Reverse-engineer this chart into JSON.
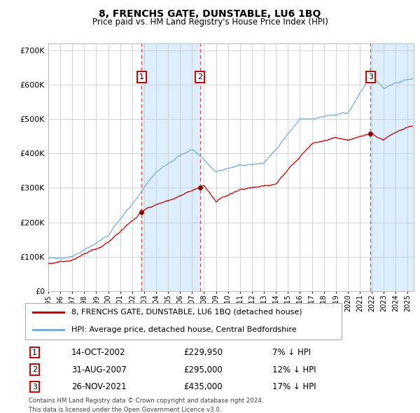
{
  "title": "8, FRENCHS GATE, DUNSTABLE, LU6 1BQ",
  "subtitle": "Price paid vs. HM Land Registry's House Price Index (HPI)",
  "legend_line1": "8, FRENCHS GATE, DUNSTABLE, LU6 1BQ (detached house)",
  "legend_line2": "HPI: Average price, detached house, Central Bedfordshire",
  "footer1": "Contains HM Land Registry data © Crown copyright and database right 2024.",
  "footer2": "This data is licensed under the Open Government Licence v3.0.",
  "sales": [
    {
      "num": 1,
      "date": "14-OCT-2002",
      "price": "£229,950",
      "hpi_diff": "7% ↓ HPI",
      "x_year": 2002.79
    },
    {
      "num": 2,
      "date": "31-AUG-2007",
      "price": "£295,000",
      "hpi_diff": "12% ↓ HPI",
      "x_year": 2007.66
    },
    {
      "num": 3,
      "date": "26-NOV-2021",
      "price": "£435,000",
      "hpi_diff": "17% ↓ HPI",
      "x_year": 2021.9
    }
  ],
  "red_line_color": "#cc0000",
  "blue_line_color": "#7ab0d4",
  "highlight_band_color": "#ddeeff",
  "sale_marker_color": "#880000",
  "dashed_line_color": "#cc3333",
  "grid_color": "#cccccc",
  "bg_color": "#ffffff",
  "ylim": [
    0,
    720000
  ],
  "yticks": [
    0,
    100000,
    200000,
    300000,
    400000,
    500000,
    600000,
    700000
  ],
  "xlim_start": 1995.0,
  "xlim_end": 2025.5
}
